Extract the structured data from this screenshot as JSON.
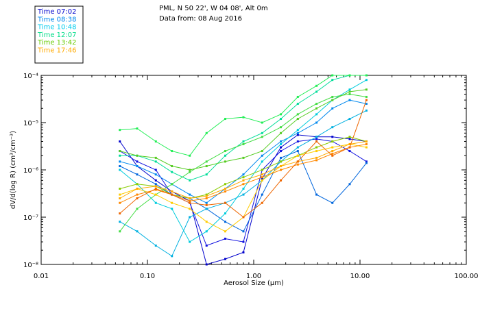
{
  "header": {
    "line1": "PML, N 50 22', W 04 08', Alt 0m",
    "line2": "Data from: 08 Aug 2016"
  },
  "chart_data": {
    "type": "line",
    "xlabel": "Aerosol Size (μm)",
    "ylabel": "dV/d(log R) (cm³/cm⁻³)",
    "x_scale": "log",
    "y_scale": "log",
    "xlim": [
      0.01,
      100
    ],
    "ylim": [
      1e-08,
      0.0001
    ],
    "x_ticks": [
      "0.01",
      "0.10",
      "1.00",
      "10.00",
      "100.00"
    ],
    "y_ticks": [
      "10⁻⁸",
      "10⁻⁷",
      "10⁻⁶",
      "10⁻⁵",
      "10⁻⁴"
    ],
    "grid": false,
    "legend_position": "top-left",
    "series": [
      {
        "name": "Time 07:02",
        "color": "#0000cc",
        "x": [
          0.055,
          0.08,
          0.12,
          0.17,
          0.25,
          0.36,
          0.54,
          0.8,
          1.2,
          1.8,
          2.6,
          3.9,
          5.5,
          8.0,
          11.5
        ],
        "y": [
          4e-06,
          1.2e-06,
          6e-07,
          3.5e-07,
          2.2e-07,
          1e-08,
          1.3e-08,
          1.8e-08,
          6.5e-07,
          3e-06,
          5.5e-06,
          5e-06,
          5e-06,
          4.5e-06,
          4e-06
        ]
      },
      {
        "name": "Time 07:02",
        "color": "#1010e0",
        "x": [
          0.055,
          0.08,
          0.12,
          0.17,
          0.25,
          0.36,
          0.54,
          0.8,
          1.2,
          1.8,
          2.6,
          3.9,
          5.5,
          8.0,
          11.5
        ],
        "y": [
          2.5e-06,
          1.5e-06,
          1e-06,
          3e-07,
          2e-07,
          2.5e-08,
          3.5e-08,
          3e-08,
          1e-06,
          2.5e-06,
          4e-06,
          4.5e-06,
          4e-06,
          2.5e-06,
          1.5e-06
        ]
      },
      {
        "name": "Time 08:38",
        "color": "#0066dd",
        "x": [
          0.055,
          0.08,
          0.12,
          0.17,
          0.25,
          0.36,
          0.54,
          0.8,
          1.2,
          1.8,
          2.6,
          3.9,
          5.5,
          8.0,
          11.5
        ],
        "y": [
          1.2e-06,
          8e-07,
          5e-07,
          3e-07,
          2.5e-07,
          1.5e-07,
          8e-08,
          5e-08,
          3e-07,
          1.8e-06,
          2.5e-06,
          3e-07,
          2e-07,
          5e-07,
          1.4e-06
        ]
      },
      {
        "name": "Time 08:38",
        "color": "#0088ee",
        "x": [
          0.055,
          0.08,
          0.12,
          0.17,
          0.25,
          0.36,
          0.54,
          0.8,
          1.2,
          1.8,
          2.6,
          3.9,
          5.5,
          8.0,
          11.5
        ],
        "y": [
          1.5e-06,
          1.2e-06,
          8e-07,
          5e-07,
          3e-07,
          2e-07,
          4e-07,
          8e-07,
          2e-06,
          4e-06,
          6e-06,
          1e-05,
          2e-05,
          3e-05,
          2.5e-05
        ]
      },
      {
        "name": "Time 10:48",
        "color": "#00b0e0",
        "x": [
          0.055,
          0.08,
          0.12,
          0.17,
          0.25,
          0.36,
          0.54,
          0.8,
          1.2,
          1.8,
          2.6,
          3.9,
          5.5,
          8.0,
          11.5
        ],
        "y": [
          8e-08,
          5e-08,
          2.5e-08,
          1.5e-08,
          1e-07,
          1.5e-07,
          2e-07,
          3e-07,
          6e-07,
          1.5e-06,
          3e-06,
          5e-06,
          8e-06,
          1.2e-05,
          1.8e-05
        ]
      },
      {
        "name": "Time 10:48",
        "color": "#00ccdd",
        "x": [
          0.055,
          0.08,
          0.12,
          0.17,
          0.25,
          0.36,
          0.54,
          0.8,
          1.2,
          1.8,
          2.6,
          3.9,
          5.5,
          8.0,
          11.5
        ],
        "y": [
          1e-06,
          5e-07,
          2e-07,
          1.5e-07,
          3e-08,
          5e-08,
          1.2e-07,
          4e-07,
          1.5e-06,
          3.5e-06,
          7e-06,
          1.5e-05,
          3e-05,
          5e-05,
          8e-05
        ]
      },
      {
        "name": "Time 12:07",
        "color": "#00dd99",
        "x": [
          0.055,
          0.08,
          0.12,
          0.17,
          0.25,
          0.36,
          0.54,
          0.8,
          1.2,
          1.8,
          2.6,
          3.9,
          5.5,
          8.0,
          11.5
        ],
        "y": [
          2e-06,
          2e-06,
          1.5e-06,
          9e-07,
          6e-07,
          8e-07,
          2e-06,
          4e-06,
          6e-06,
          1.2e-05,
          2.5e-05,
          4.5e-05,
          8e-05,
          0.0001,
          0.0001
        ]
      },
      {
        "name": "Time 12:07",
        "color": "#22ee55",
        "x": [
          0.055,
          0.08,
          0.12,
          0.17,
          0.25,
          0.36,
          0.54,
          0.8,
          1.2,
          1.8,
          2.6,
          3.9,
          5.5,
          8.0,
          11.5
        ],
        "y": [
          7e-06,
          7.5e-06,
          4e-06,
          2.5e-06,
          2e-06,
          6e-06,
          1.2e-05,
          1.3e-05,
          1e-05,
          1.5e-05,
          3.5e-05,
          6e-05,
          0.0001,
          0.0001,
          0.0001
        ]
      },
      {
        "name": "Time 12:07",
        "color": "#44dd44",
        "x": [
          0.055,
          0.08,
          0.12,
          0.17,
          0.25,
          0.36,
          0.54,
          0.8,
          1.2,
          1.8,
          2.6,
          3.9,
          5.5,
          8.0,
          11.5
        ],
        "y": [
          5e-08,
          1.5e-07,
          3e-07,
          5e-07,
          9e-07,
          1.5e-06,
          2.5e-06,
          3.5e-06,
          5e-06,
          8e-06,
          1.5e-05,
          2.5e-05,
          3.5e-05,
          4e-05,
          3.5e-05
        ]
      },
      {
        "name": "Time 13:42",
        "color": "#55cc22",
        "x": [
          0.055,
          0.08,
          0.12,
          0.17,
          0.25,
          0.36,
          0.54,
          0.8,
          1.2,
          1.8,
          2.6,
          3.9,
          5.5,
          8.0,
          11.5
        ],
        "y": [
          2.5e-06,
          2e-06,
          1.8e-06,
          1.2e-06,
          1e-06,
          1.2e-06,
          1.5e-06,
          1.8e-06,
          2.5e-06,
          6e-06,
          1.2e-05,
          2e-05,
          3e-05,
          4.5e-05,
          5e-05
        ]
      },
      {
        "name": "Time 13:42",
        "color": "#88cc00",
        "x": [
          0.055,
          0.08,
          0.12,
          0.17,
          0.25,
          0.36,
          0.54,
          0.8,
          1.2,
          1.8,
          2.6,
          3.9,
          5.5,
          8.0,
          11.5
        ],
        "y": [
          4e-07,
          5e-07,
          4.5e-07,
          3e-07,
          2.5e-07,
          3e-07,
          5e-07,
          7e-07,
          1e-06,
          1.5e-06,
          2e-06,
          3e-06,
          4e-06,
          5e-06,
          4e-06
        ]
      },
      {
        "name": "Time 17:46",
        "color": "#ffcc00",
        "x": [
          0.055,
          0.08,
          0.12,
          0.17,
          0.25,
          0.36,
          0.54,
          0.8,
          1.2,
          1.8,
          2.6,
          3.9,
          5.5,
          8.0,
          11.5
        ],
        "y": [
          3e-07,
          4e-07,
          3e-07,
          2e-07,
          1.5e-07,
          8e-08,
          5e-08,
          1e-07,
          6e-07,
          1.2e-06,
          2e-06,
          2.5e-06,
          3e-06,
          3.5e-06,
          3e-06
        ]
      },
      {
        "name": "Time 17:46",
        "color": "#ffaa00",
        "x": [
          0.055,
          0.08,
          0.12,
          0.17,
          0.25,
          0.36,
          0.54,
          0.8,
          1.2,
          1.8,
          2.6,
          3.9,
          5.5,
          8.0,
          11.5
        ],
        "y": [
          2.5e-07,
          4e-07,
          4.5e-07,
          3.5e-07,
          2.5e-07,
          2.8e-07,
          4e-07,
          6e-07,
          8e-07,
          1.2e-06,
          1.5e-06,
          1.8e-06,
          2.5e-06,
          3.5e-06,
          4e-06
        ]
      },
      {
        "name": "Time 17:46",
        "color": "#ff8800",
        "x": [
          0.055,
          0.08,
          0.12,
          0.17,
          0.25,
          0.36,
          0.54,
          0.8,
          1.2,
          1.8,
          2.6,
          3.9,
          5.5,
          8.0,
          11.5
        ],
        "y": [
          2e-07,
          3e-07,
          3.8e-07,
          3e-07,
          2.2e-07,
          2.5e-07,
          3.5e-07,
          5e-07,
          7e-07,
          1e-06,
          1.3e-06,
          1.6e-06,
          2.2e-06,
          3e-06,
          3.5e-06
        ]
      },
      {
        "name": "Time 17:46",
        "color": "#ee6600",
        "x": [
          0.055,
          0.08,
          0.12,
          0.17,
          0.25,
          0.36,
          0.54,
          0.8,
          1.2,
          1.8,
          2.6,
          3.9,
          5.5,
          8.0,
          11.5
        ],
        "y": [
          1.2e-07,
          2.5e-07,
          4e-07,
          3e-07,
          2e-07,
          1.8e-07,
          2e-07,
          1e-07,
          2e-07,
          6e-07,
          1.5e-06,
          4e-06,
          2e-06,
          3e-06,
          3e-05
        ]
      }
    ],
    "legend_entries": [
      {
        "label": "Time 07:02",
        "color": "#0000cc"
      },
      {
        "label": "Time 08:38",
        "color": "#0088ee"
      },
      {
        "label": "Time 10:48",
        "color": "#00ccee"
      },
      {
        "label": "Time 12:07",
        "color": "#00dd88"
      },
      {
        "label": "Time 13:42",
        "color": "#66cc00"
      },
      {
        "label": "Time 17:46",
        "color": "#ffaa00"
      }
    ]
  }
}
